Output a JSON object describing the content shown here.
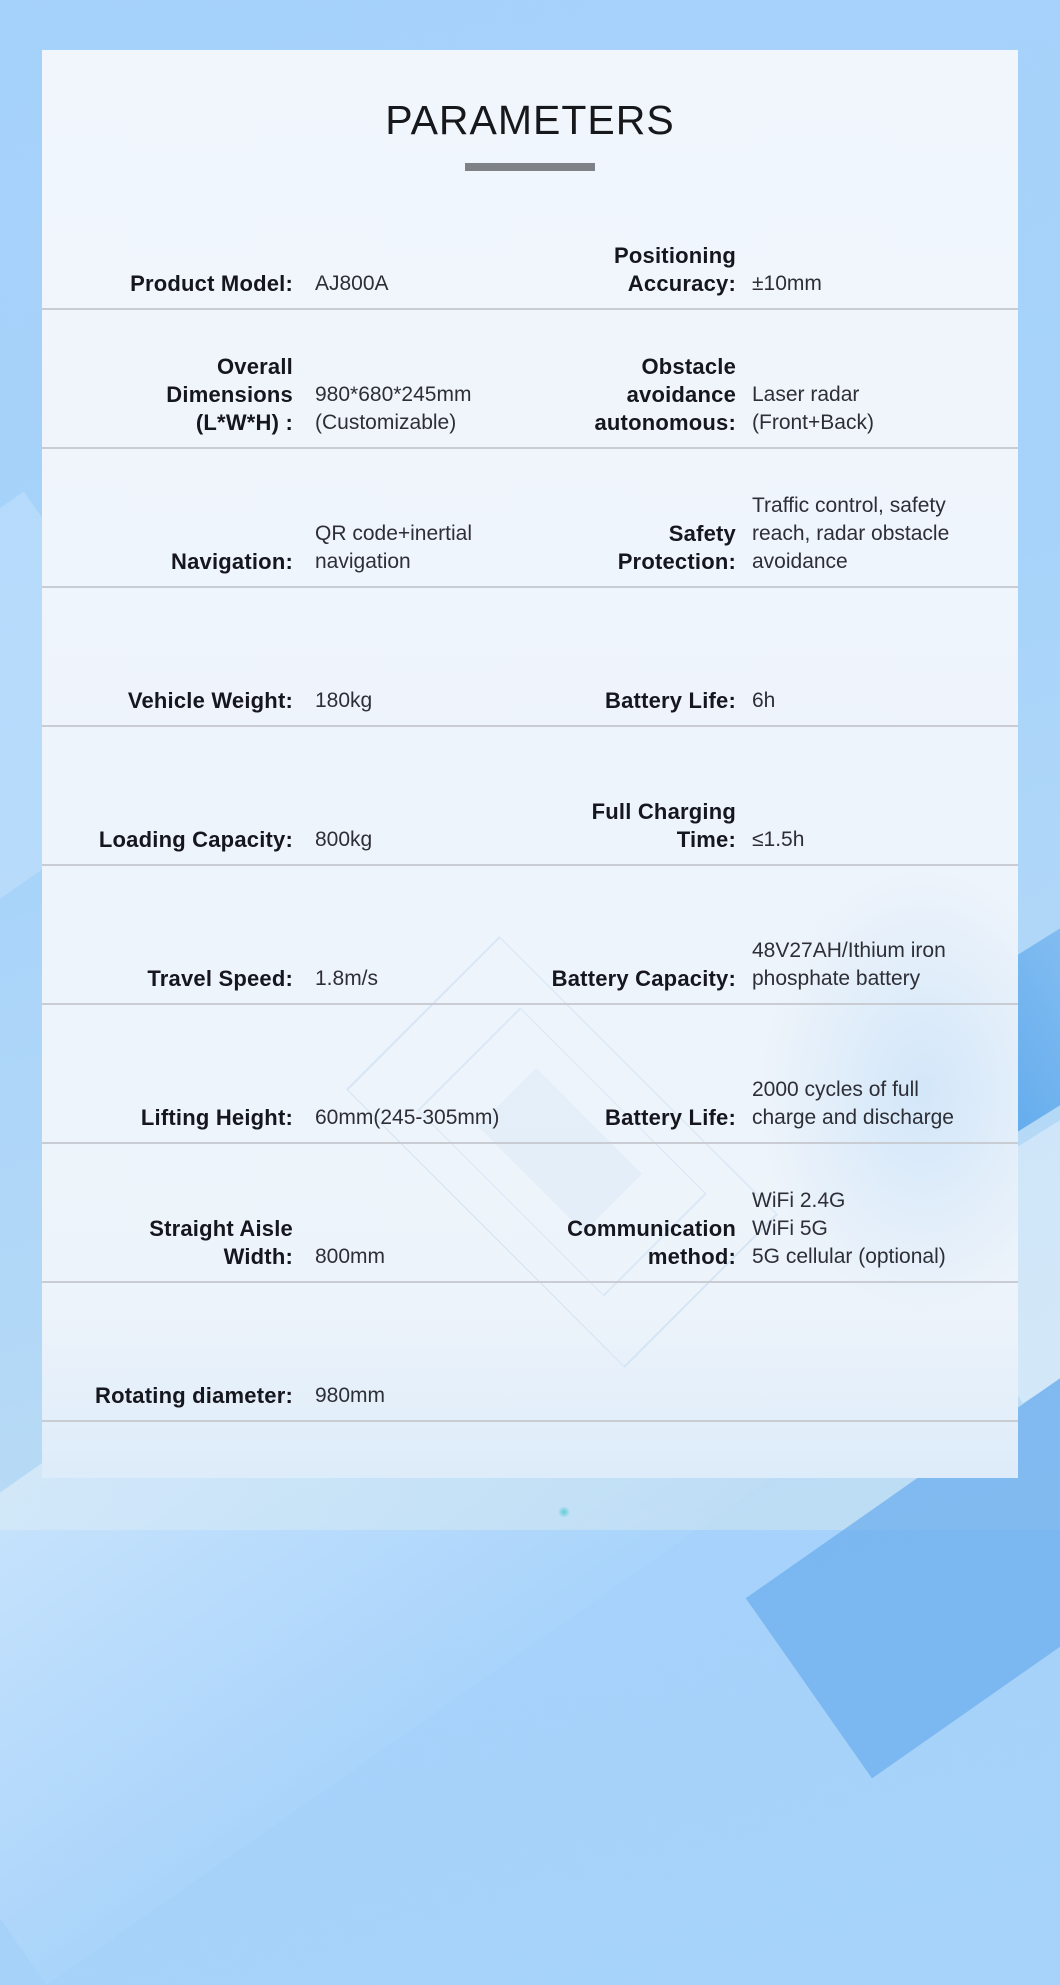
{
  "title": "PARAMETERS",
  "colors": {
    "background_blue": "#a6d3fa",
    "card_background": "#f0f6fc",
    "underline_gray": "#7e8185",
    "divider_gray": "#c9ccd2",
    "label_text": "#16161e",
    "value_text": "#2e2e36",
    "accent_band_blue": "#58a5eb"
  },
  "rows": [
    {
      "left": {
        "label": "Product Model:",
        "value": "AJ800A"
      },
      "right": {
        "label": "Positioning\nAccuracy:",
        "value": "±10mm"
      }
    },
    {
      "left": {
        "label": "Overall\nDimensions\n(L*W*H) :",
        "value": "980*680*245mm\n(Customizable)"
      },
      "right": {
        "label": "Obstacle\navoidance\nautonomous:",
        "value": "Laser radar\n(Front+Back)"
      }
    },
    {
      "left": {
        "label": "Navigation:",
        "value": "QR code+inertial\nnavigation"
      },
      "right": {
        "label": "Safety\nProtection:",
        "value": "Traffic control, safety\nreach, radar obstacle\navoidance"
      }
    },
    {
      "left": {
        "label": "Vehicle Weight:",
        "value": "180kg"
      },
      "right": {
        "label": "Battery Life:",
        "value": "6h"
      }
    },
    {
      "left": {
        "label": "Loading Capacity:",
        "value": "800kg"
      },
      "right": {
        "label": "Full Charging\nTime:",
        "value": "≤1.5h"
      }
    },
    {
      "left": {
        "label": "Travel Speed:",
        "value": "1.8m/s"
      },
      "right": {
        "label": "Battery Capacity:",
        "value": "48V27AH/Ithium iron\nphosphate battery"
      }
    },
    {
      "left": {
        "label": "Lifting Height:",
        "value": "60mm(245-305mm)"
      },
      "right": {
        "label": "Battery Life:",
        "value": "2000 cycles of full\ncharge and discharge"
      }
    },
    {
      "left": {
        "label": "Straight Aisle\nWidth:",
        "value": "800mm"
      },
      "right": {
        "label": "Communication\nmethod:",
        "value": "WiFi 2.4G\nWiFi 5G\n5G cellular (optional)"
      }
    },
    {
      "left": {
        "label": "Rotating diameter:",
        "value": "980mm"
      }
    }
  ]
}
